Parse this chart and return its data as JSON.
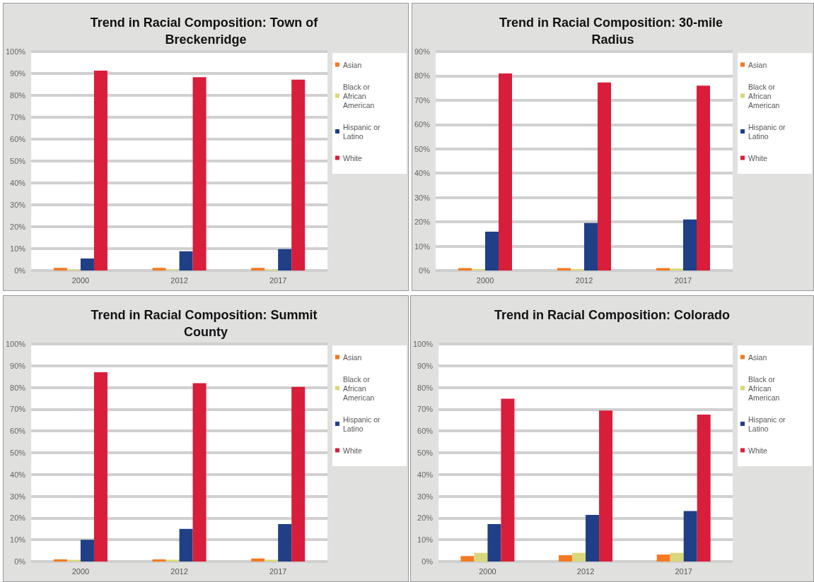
{
  "chart_data": [
    {
      "type": "bar",
      "title": "Trend in Racial Composition: Town of Breckenridge",
      "categories": [
        "2000",
        "2012",
        "2017"
      ],
      "series": [
        {
          "name": "Asian",
          "color": "#f47920",
          "values": [
            1.2,
            1.2,
            1.2
          ]
        },
        {
          "name": "Black or African American",
          "color": "#d9d77a",
          "values": [
            0.4,
            0.4,
            0.4
          ]
        },
        {
          "name": "Hispanic or Latino",
          "color": "#1f3f87",
          "values": [
            5.5,
            8.8,
            9.8
          ]
        },
        {
          "name": "White",
          "color": "#d81e3a",
          "values": [
            91.3,
            88.3,
            87.2
          ]
        }
      ],
      "ylim": [
        0,
        100
      ],
      "yticks": [
        {
          "value": 0,
          "label": "0%"
        },
        {
          "value": 10,
          "label": "10%"
        },
        {
          "value": 20,
          "label": "20%"
        },
        {
          "value": 30,
          "label": "30%"
        },
        {
          "value": 40,
          "label": "40%"
        },
        {
          "value": 50,
          "label": "50%"
        },
        {
          "value": 60,
          "label": "60%"
        },
        {
          "value": 70,
          "label": "70%"
        },
        {
          "value": 80,
          "label": "80%"
        },
        {
          "value": 90,
          "label": "90%"
        },
        {
          "value": 100,
          "label": "100%"
        }
      ],
      "grid": "y",
      "legend": "right"
    },
    {
      "type": "bar",
      "title": "Trend in Racial Composition: 30-mile Radius",
      "categories": [
        "2000",
        "2012",
        "2017"
      ],
      "series": [
        {
          "name": "Asian",
          "color": "#f47920",
          "values": [
            1,
            1,
            1
          ]
        },
        {
          "name": "Black or African American",
          "color": "#d9d77a",
          "values": [
            0.6,
            0.6,
            0.8
          ]
        },
        {
          "name": "Hispanic or Latino",
          "color": "#1f3f87",
          "values": [
            16,
            19.5,
            21
          ]
        },
        {
          "name": "White",
          "color": "#d81e3a",
          "values": [
            81,
            77.3,
            76
          ]
        }
      ],
      "ylim": [
        0,
        90
      ],
      "yticks": [
        {
          "value": 0,
          "label": "0%"
        },
        {
          "value": 10,
          "label": "10%"
        },
        {
          "value": 20,
          "label": "20%"
        },
        {
          "value": 30,
          "label": "30%"
        },
        {
          "value": 40,
          "label": "40%"
        },
        {
          "value": 50,
          "label": "50%"
        },
        {
          "value": 60,
          "label": "60%"
        },
        {
          "value": 70,
          "label": "70%"
        },
        {
          "value": 80,
          "label": "80%"
        },
        {
          "value": 90,
          "label": "90%"
        }
      ],
      "grid": "y",
      "legend": "right"
    },
    {
      "type": "bar",
      "title": "Trend in Racial Composition: Summit County",
      "categories": [
        "2000",
        "2012",
        "2017"
      ],
      "series": [
        {
          "name": "Asian",
          "color": "#f47920",
          "values": [
            1,
            1,
            1.4
          ]
        },
        {
          "name": "Black or African American",
          "color": "#d9d77a",
          "values": [
            0.8,
            0.8,
            0.8
          ]
        },
        {
          "name": "Hispanic or Latino",
          "color": "#1f3f87",
          "values": [
            10,
            15,
            17.2
          ]
        },
        {
          "name": "White",
          "color": "#d81e3a",
          "values": [
            87,
            82,
            80.3
          ]
        }
      ],
      "ylim": [
        0,
        100
      ],
      "yticks": [
        {
          "value": 0,
          "label": "0%"
        },
        {
          "value": 10,
          "label": "10%"
        },
        {
          "value": 20,
          "label": "20%"
        },
        {
          "value": 30,
          "label": "30%"
        },
        {
          "value": 40,
          "label": "40%"
        },
        {
          "value": 50,
          "label": "50%"
        },
        {
          "value": 60,
          "label": "60%"
        },
        {
          "value": 70,
          "label": "70%"
        },
        {
          "value": 80,
          "label": "80%"
        },
        {
          "value": 90,
          "label": "90%"
        },
        {
          "value": 100,
          "label": "100%"
        }
      ],
      "grid": "y",
      "legend": "right"
    },
    {
      "type": "bar",
      "title": "Trend in Racial Composition: Colorado",
      "categories": [
        "2000",
        "2012",
        "2017"
      ],
      "series": [
        {
          "name": "Asian",
          "color": "#f47920",
          "values": [
            2.5,
            2.9,
            3.2
          ]
        },
        {
          "name": "Black or African American",
          "color": "#d9d77a",
          "values": [
            4,
            4,
            4
          ]
        },
        {
          "name": "Hispanic or Latino",
          "color": "#1f3f87",
          "values": [
            17.2,
            21.4,
            23.2
          ]
        },
        {
          "name": "White",
          "color": "#d81e3a",
          "values": [
            74.8,
            69.4,
            67.5
          ]
        }
      ],
      "ylim": [
        0,
        100
      ],
      "yticks": [
        {
          "value": 0,
          "label": "0%"
        },
        {
          "value": 10,
          "label": "10%"
        },
        {
          "value": 20,
          "label": "20%"
        },
        {
          "value": 30,
          "label": "30%"
        },
        {
          "value": 40,
          "label": "40%"
        },
        {
          "value": 50,
          "label": "50%"
        },
        {
          "value": 60,
          "label": "60%"
        },
        {
          "value": 70,
          "label": "70%"
        },
        {
          "value": 80,
          "label": "80%"
        },
        {
          "value": 90,
          "label": "90%"
        },
        {
          "value": 100,
          "label": "100%"
        }
      ],
      "grid": "y",
      "legend": "right"
    }
  ]
}
